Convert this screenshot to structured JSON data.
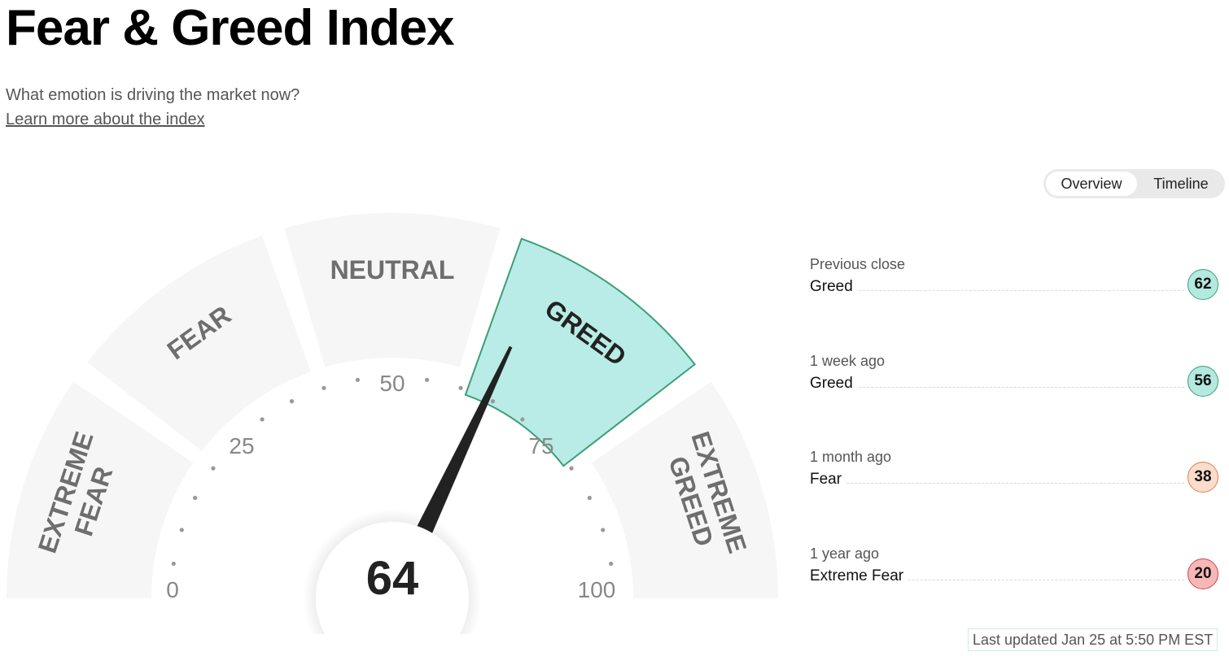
{
  "header": {
    "title": "Fear & Greed Index",
    "subtitle": "What emotion is driving the market now?",
    "learn_more": "Learn more about the index"
  },
  "view_toggle": {
    "overview": "Overview",
    "timeline": "Timeline",
    "selected": "Overview"
  },
  "gauge": {
    "value": 64,
    "value_label": "64",
    "zones": [
      "EXTREME FEAR",
      "FEAR",
      "NEUTRAL",
      "GREED",
      "EXTREME GREED"
    ],
    "active_zone": "GREED",
    "scale_labels": [
      "0",
      "25",
      "50",
      "75",
      "100"
    ],
    "colors": {
      "segment": "#f6f6f6",
      "active_fill": "#b9ece6",
      "active_stroke": "#3d9e77",
      "needle": "#222222",
      "zone_text": "#6e6e6e"
    }
  },
  "history": [
    {
      "label": "Previous close",
      "rating": "Greed",
      "value": "62",
      "color": "#b3e9df",
      "border": "#3e9e80"
    },
    {
      "label": "1 week ago",
      "rating": "Greed",
      "value": "56",
      "color": "#b3e9df",
      "border": "#3e9e80"
    },
    {
      "label": "1 month ago",
      "rating": "Fear",
      "value": "38",
      "color": "#fcdccb",
      "border": "#d9824b"
    },
    {
      "label": "1 year ago",
      "rating": "Extreme Fear",
      "value": "20",
      "color": "#f8b7b7",
      "border": "#c44a4a"
    }
  ],
  "last_updated": "Last updated Jan 25 at 5:50 PM EST"
}
